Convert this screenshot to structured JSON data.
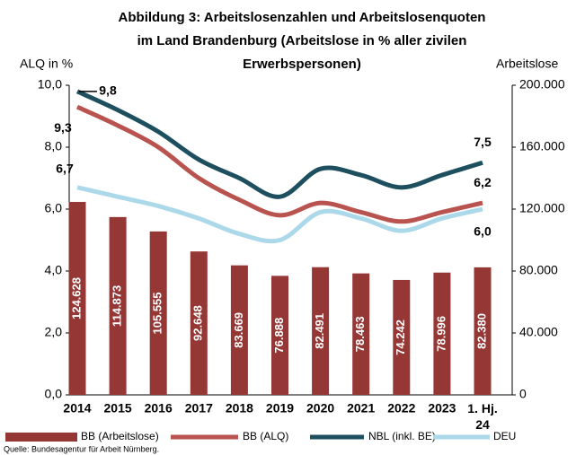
{
  "chart_data": {
    "type": "bar_line",
    "title_lines": [
      "Abbildung 3: Arbeitslosenzahlen und Arbeitslosenquoten",
      "im Land Brandenburg (Arbeitslose in % aller zivilen",
      "Erwerbspersonen)"
    ],
    "y_label": "ALQ in %",
    "y2_label": "Arbeitslose",
    "source": "Quelle: Bundesagentur für Arbeit Nürnberg.",
    "categories": [
      "2014",
      "2015",
      "2016",
      "2017",
      "2018",
      "2019",
      "2020",
      "2021",
      "2022",
      "2023",
      "1. Hj. 24"
    ],
    "ylim": [
      0,
      10
    ],
    "yticks": [
      {
        "value": 0,
        "label": "0,0"
      },
      {
        "value": 2,
        "label": "2,0"
      },
      {
        "value": 4,
        "label": "4,0"
      },
      {
        "value": 6,
        "label": "6,0"
      },
      {
        "value": 8,
        "label": "8,0"
      },
      {
        "value": 10,
        "label": "10,0"
      }
    ],
    "y2lim": [
      0,
      200000
    ],
    "y2ticks": [
      0,
      {
        "value": 40000,
        "label": "40.000"
      },
      {
        "value": 80000,
        "label": "80.000"
      },
      {
        "value": 120000,
        "label": "120.000"
      },
      {
        "value": 160000,
        "label": "160.000"
      },
      {
        "value": 200000,
        "label": "200.000"
      }
    ],
    "series": [
      {
        "name": "BB (Arbeitslose)",
        "type": "bar",
        "axis": "y2",
        "color": "#953735",
        "values": [
          124628,
          114873,
          105555,
          92648,
          83669,
          76888,
          82491,
          78463,
          74242,
          78996,
          82380
        ],
        "value_labels": [
          "124.628",
          "114.873",
          "105.555",
          "92.648",
          "83.669",
          "76.888",
          "82.491",
          "78.463",
          "74.242",
          "78.996",
          "82.380"
        ]
      },
      {
        "name": "BB (ALQ)",
        "type": "line",
        "color": "#b9534f",
        "values": [
          9.3,
          8.7,
          8.0,
          7.0,
          6.3,
          5.8,
          6.2,
          5.9,
          5.6,
          5.9,
          6.2
        ],
        "value_labels": [
          "9,3",
          null,
          null,
          null,
          null,
          null,
          null,
          null,
          null,
          null,
          "6,2"
        ]
      },
      {
        "name": "NBL (inkl. BE)",
        "type": "line",
        "color": "#1d4f5e",
        "values": [
          9.8,
          9.2,
          8.5,
          7.6,
          7.0,
          6.4,
          7.3,
          7.1,
          6.7,
          7.1,
          7.5
        ],
        "value_labels": [
          "9,8",
          null,
          null,
          null,
          null,
          null,
          null,
          null,
          null,
          null,
          "7,5"
        ]
      },
      {
        "name": "DEU",
        "type": "line",
        "color": "#acd9ea",
        "values": [
          6.7,
          6.4,
          6.1,
          5.7,
          5.2,
          5.0,
          5.9,
          5.7,
          5.3,
          5.7,
          6.0
        ],
        "value_labels": [
          "6,7",
          null,
          null,
          null,
          null,
          null,
          null,
          null,
          null,
          null,
          "6,0"
        ]
      }
    ]
  }
}
